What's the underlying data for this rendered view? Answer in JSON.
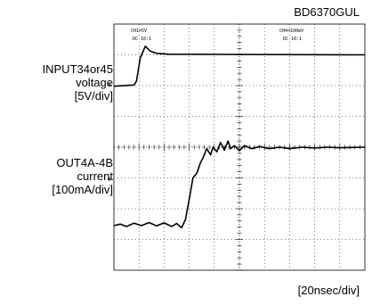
{
  "part_number": "BD6370GUL",
  "channel1": {
    "scale": "CH1=5V",
    "coupling": "DC 10:1"
  },
  "channel4": {
    "scale": "CH4=100mV",
    "coupling": "DC 10:1"
  },
  "trace_labels": {
    "ch1": [
      "INPUT34or45",
      "voltage",
      "[5V/div]"
    ],
    "ch4": [
      "OUT4A-4B",
      "current",
      "[100mA/div]"
    ]
  },
  "timebase": "[20nsec/div]",
  "colors": {
    "trace": "#000000",
    "grid": "#000000",
    "background": "#ffffff"
  },
  "chart_data": {
    "type": "line",
    "grid": true,
    "x_unit": "div",
    "xlim": [
      0,
      10
    ],
    "ylim": [
      -4,
      4
    ],
    "series": [
      {
        "points": [
          [
            0,
            1.98
          ],
          [
            0.8,
            2.02
          ],
          [
            0.9,
            2.15
          ],
          [
            1.05,
            2.9
          ],
          [
            1.25,
            3.28
          ],
          [
            1.45,
            3.12
          ],
          [
            1.7,
            3.05
          ],
          [
            2.2,
            3.02
          ],
          [
            10,
            3.0
          ]
        ]
      },
      {
        "points": [
          [
            0,
            -2.55
          ],
          [
            0.25,
            -2.5
          ],
          [
            0.5,
            -2.58
          ],
          [
            0.8,
            -2.47
          ],
          [
            1.1,
            -2.55
          ],
          [
            1.4,
            -2.45
          ],
          [
            1.7,
            -2.56
          ],
          [
            2.0,
            -2.46
          ],
          [
            2.3,
            -2.58
          ],
          [
            2.5,
            -2.48
          ],
          [
            2.7,
            -2.62
          ],
          [
            2.85,
            -2.35
          ],
          [
            3.0,
            -1.7
          ],
          [
            3.15,
            -1.0
          ],
          [
            3.3,
            -0.85
          ],
          [
            3.45,
            -0.5
          ],
          [
            3.55,
            -0.35
          ],
          [
            3.7,
            -0.05
          ],
          [
            3.85,
            -0.25
          ],
          [
            3.95,
            0.0
          ],
          [
            4.1,
            -0.15
          ],
          [
            4.25,
            0.15
          ],
          [
            4.4,
            -0.1
          ],
          [
            4.55,
            0.2
          ],
          [
            4.65,
            -0.05
          ],
          [
            4.8,
            0.05
          ],
          [
            5.0,
            -0.12
          ],
          [
            5.2,
            0.05
          ],
          [
            5.5,
            -0.05
          ],
          [
            5.8,
            0.02
          ],
          [
            6.2,
            -0.05
          ],
          [
            6.6,
            0.0
          ],
          [
            7.0,
            -0.05
          ],
          [
            7.5,
            0.0
          ],
          [
            8.0,
            -0.03
          ],
          [
            8.5,
            0.0
          ],
          [
            9.0,
            -0.02
          ],
          [
            10,
            0.0
          ]
        ]
      }
    ]
  }
}
